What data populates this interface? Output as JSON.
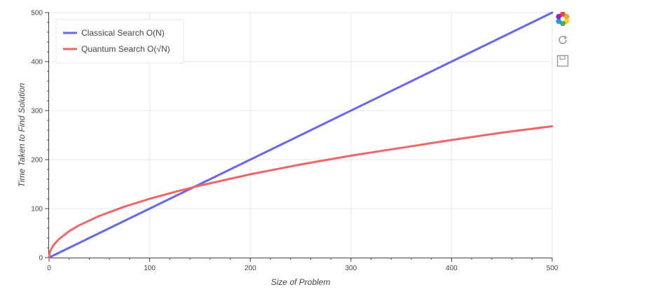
{
  "chart_data": {
    "type": "line",
    "xlabel": "Size of Problem",
    "ylabel": "Time Taken to Find Solution",
    "xlim": [
      0,
      500
    ],
    "ylim": [
      0,
      500
    ],
    "x_ticks": [
      0,
      100,
      200,
      300,
      400,
      500
    ],
    "y_ticks": [
      0,
      100,
      200,
      300,
      400,
      500
    ],
    "grid": true,
    "legend_position": "top-left",
    "series": [
      {
        "name": "Classical Search O(N)",
        "color": "#6666ee",
        "x": [
          0,
          500
        ],
        "y": [
          0,
          500
        ]
      },
      {
        "name": "Quantum Search O(√N)",
        "color": "#ee6666",
        "x": [
          0,
          1,
          2,
          5,
          10,
          20,
          30,
          50,
          75,
          100,
          125,
          150,
          200,
          250,
          300,
          350,
          400,
          450,
          500
        ],
        "y": [
          0,
          12,
          17,
          27,
          38,
          54,
          66,
          85,
          104,
          120,
          134,
          147,
          170,
          190,
          208,
          224,
          240,
          255,
          268
        ]
      }
    ]
  },
  "toolbar": {
    "tools": [
      {
        "icon": "bokeh-logo-icon"
      },
      {
        "icon": "reset-icon"
      },
      {
        "icon": "save-icon"
      }
    ]
  }
}
